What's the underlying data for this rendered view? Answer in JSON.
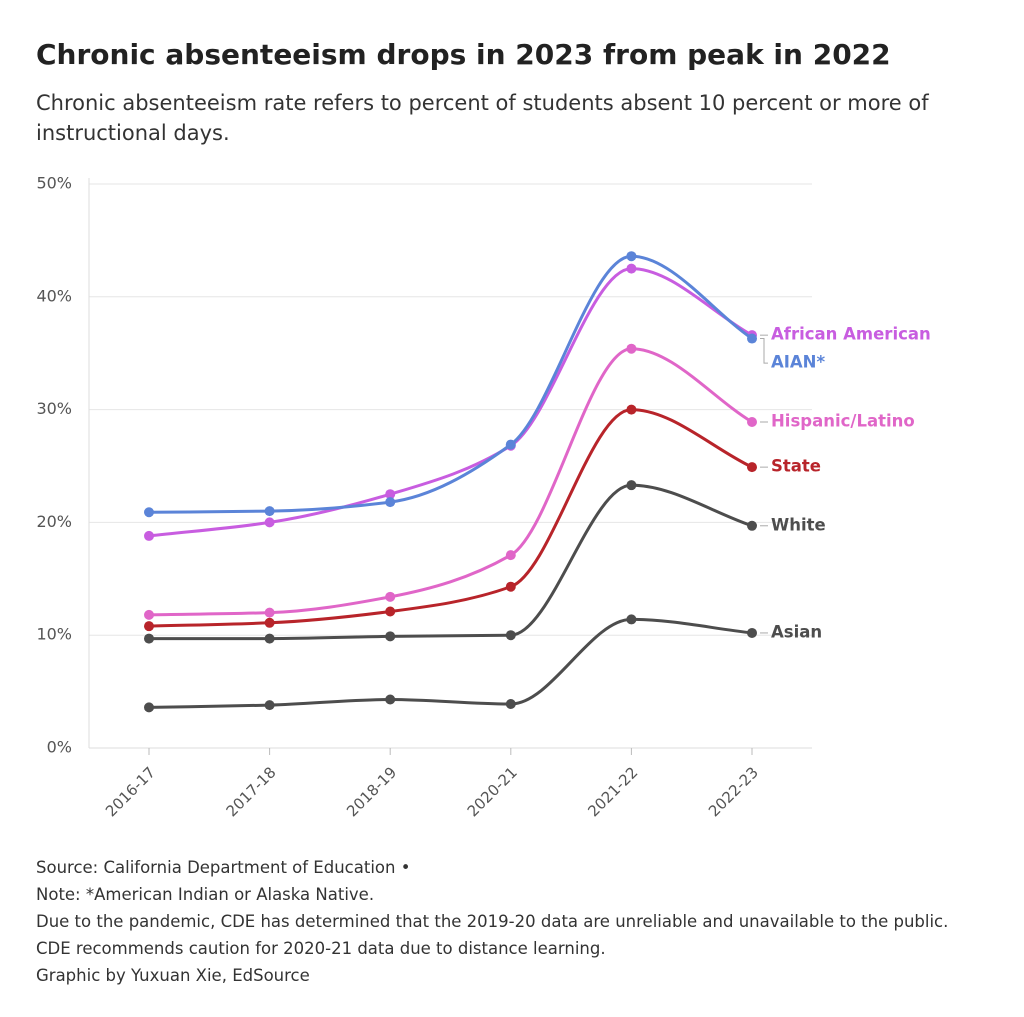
{
  "chart_data": {
    "type": "line",
    "title": "Chronic absenteeism drops in 2023 from peak in 2022",
    "subtitle": "Chronic absenteeism rate refers to percent of students absent 10 percent or more of instructional days.",
    "categories": [
      "2016-17",
      "2017-18",
      "2018-19",
      "2020-21",
      "2021-22",
      "2022-23"
    ],
    "series": [
      {
        "name": "African American",
        "color": "#c85de0",
        "values": [
          18.8,
          20.0,
          22.5,
          26.8,
          42.5,
          36.6
        ]
      },
      {
        "name": "AIAN*",
        "color": "#5b84d8",
        "values": [
          20.9,
          21.0,
          21.8,
          26.9,
          43.6,
          36.3
        ]
      },
      {
        "name": "Hispanic/Latino",
        "color": "#e066c8",
        "values": [
          11.8,
          12.0,
          13.4,
          17.1,
          35.4,
          28.9
        ]
      },
      {
        "name": "State",
        "color": "#b8242a",
        "values": [
          10.8,
          11.1,
          12.1,
          14.3,
          30.0,
          24.9
        ]
      },
      {
        "name": "White",
        "color": "#4d4d4d",
        "values": [
          9.7,
          9.7,
          9.9,
          10.0,
          23.3,
          19.7
        ]
      },
      {
        "name": "Asian",
        "color": "#4d4d4d",
        "values": [
          3.6,
          3.8,
          4.3,
          3.9,
          11.4,
          10.2
        ]
      }
    ],
    "ylim": [
      0,
      50
    ],
    "yticks": [
      {
        "value": 0,
        "label": "0%"
      },
      {
        "value": 10,
        "label": "10%"
      },
      {
        "value": 20,
        "label": "20%"
      },
      {
        "value": 30,
        "label": "30%"
      },
      {
        "value": 40,
        "label": "40%"
      },
      {
        "value": 50,
        "label": "50%"
      }
    ],
    "grid": true,
    "notes": [
      "Source: California Department of Education •",
      "Note: *American Indian or Alaska Native.",
      "Due to the pandemic, CDE has determined that the 2019-20 data are unreliable and unavailable to the public.",
      "CDE recommends caution for 2020-21 data due to distance learning.",
      "Graphic by Yuxuan Xie, EdSource"
    ]
  }
}
